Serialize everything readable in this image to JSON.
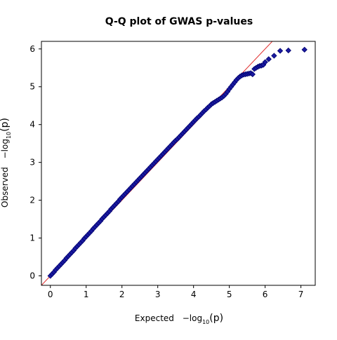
{
  "chart_data": {
    "type": "scatter",
    "title": "Q-Q plot of GWAS p-values",
    "xlabel": {
      "prefix": "Expected",
      "text": "−log",
      "sub": "10",
      "arg": "(p)"
    },
    "ylabel": {
      "prefix": "Observed",
      "text": "−log",
      "sub": "10",
      "arg": "(p)"
    },
    "xlim": [
      -0.25,
      7.4
    ],
    "ylim": [
      -0.25,
      6.2
    ],
    "xticks": [
      0,
      1,
      2,
      3,
      4,
      5,
      6,
      7
    ],
    "yticks": [
      0,
      1,
      2,
      3,
      4,
      5,
      6
    ],
    "xtick_labels": [
      "0",
      "1",
      "2",
      "3",
      "4",
      "5",
      "6",
      "7"
    ],
    "ytick_labels": [
      "0",
      "1",
      "2",
      "3",
      "4",
      "5",
      "6"
    ],
    "grid": false,
    "reference_line": {
      "slope": 1,
      "intercept": 0,
      "color": "#e03030"
    },
    "marker": {
      "shape": "diamond",
      "fill": "#1a1aa0",
      "stroke": "#00006e"
    },
    "series": [
      {
        "points": [
          [
            0.0,
            0.0
          ],
          [
            0.05,
            0.05
          ],
          [
            0.1,
            0.1
          ],
          [
            0.15,
            0.16
          ],
          [
            0.2,
            0.21
          ],
          [
            0.25,
            0.26
          ],
          [
            0.3,
            0.31
          ],
          [
            0.35,
            0.36
          ],
          [
            0.4,
            0.41
          ],
          [
            0.45,
            0.47
          ],
          [
            0.5,
            0.52
          ],
          [
            0.55,
            0.57
          ],
          [
            0.6,
            0.62
          ],
          [
            0.65,
            0.67
          ],
          [
            0.7,
            0.73
          ],
          [
            0.75,
            0.78
          ],
          [
            0.8,
            0.83
          ],
          [
            0.85,
            0.88
          ],
          [
            0.9,
            0.93
          ],
          [
            0.95,
            0.99
          ],
          [
            1.0,
            1.04
          ],
          [
            1.05,
            1.09
          ],
          [
            1.1,
            1.14
          ],
          [
            1.15,
            1.19
          ],
          [
            1.2,
            1.25
          ],
          [
            1.25,
            1.3
          ],
          [
            1.3,
            1.35
          ],
          [
            1.35,
            1.4
          ],
          [
            1.4,
            1.45
          ],
          [
            1.45,
            1.51
          ],
          [
            1.5,
            1.56
          ],
          [
            1.55,
            1.61
          ],
          [
            1.6,
            1.66
          ],
          [
            1.65,
            1.71
          ],
          [
            1.7,
            1.77
          ],
          [
            1.75,
            1.82
          ],
          [
            1.8,
            1.87
          ],
          [
            1.85,
            1.92
          ],
          [
            1.9,
            1.97
          ],
          [
            1.95,
            2.03
          ],
          [
            2.0,
            2.08
          ],
          [
            2.05,
            2.13
          ],
          [
            2.1,
            2.18
          ],
          [
            2.15,
            2.23
          ],
          [
            2.2,
            2.28
          ],
          [
            2.25,
            2.33
          ],
          [
            2.3,
            2.38
          ],
          [
            2.35,
            2.43
          ],
          [
            2.4,
            2.48
          ],
          [
            2.45,
            2.53
          ],
          [
            2.5,
            2.58
          ],
          [
            2.55,
            2.63
          ],
          [
            2.6,
            2.68
          ],
          [
            2.65,
            2.73
          ],
          [
            2.7,
            2.78
          ],
          [
            2.75,
            2.83
          ],
          [
            2.8,
            2.88
          ],
          [
            2.85,
            2.93
          ],
          [
            2.9,
            2.98
          ],
          [
            2.95,
            3.03
          ],
          [
            3.0,
            3.08
          ],
          [
            3.05,
            3.13
          ],
          [
            3.1,
            3.18
          ],
          [
            3.15,
            3.23
          ],
          [
            3.2,
            3.28
          ],
          [
            3.25,
            3.33
          ],
          [
            3.3,
            3.38
          ],
          [
            3.35,
            3.43
          ],
          [
            3.4,
            3.48
          ],
          [
            3.45,
            3.53
          ],
          [
            3.5,
            3.58
          ],
          [
            3.55,
            3.62
          ],
          [
            3.6,
            3.67
          ],
          [
            3.65,
            3.72
          ],
          [
            3.7,
            3.77
          ],
          [
            3.75,
            3.82
          ],
          [
            3.8,
            3.87
          ],
          [
            3.85,
            3.92
          ],
          [
            3.9,
            3.97
          ],
          [
            3.95,
            4.02
          ],
          [
            4.0,
            4.07
          ],
          [
            4.05,
            4.12
          ],
          [
            4.1,
            4.17
          ],
          [
            4.15,
            4.21
          ],
          [
            4.2,
            4.26
          ],
          [
            4.25,
            4.31
          ],
          [
            4.3,
            4.36
          ],
          [
            4.35,
            4.4
          ],
          [
            4.4,
            4.45
          ],
          [
            4.45,
            4.49
          ],
          [
            4.5,
            4.54
          ],
          [
            4.55,
            4.57
          ],
          [
            4.6,
            4.6
          ],
          [
            4.65,
            4.63
          ],
          [
            4.7,
            4.66
          ],
          [
            4.75,
            4.69
          ],
          [
            4.8,
            4.72
          ],
          [
            4.85,
            4.76
          ],
          [
            4.9,
            4.81
          ],
          [
            4.95,
            4.87
          ],
          [
            5.0,
            4.94
          ],
          [
            5.05,
            5.0
          ],
          [
            5.1,
            5.06
          ],
          [
            5.15,
            5.12
          ],
          [
            5.2,
            5.18
          ],
          [
            5.25,
            5.23
          ],
          [
            5.3,
            5.27
          ],
          [
            5.35,
            5.3
          ],
          [
            5.4,
            5.32
          ],
          [
            5.45,
            5.33
          ],
          [
            5.5,
            5.34
          ],
          [
            5.55,
            5.35
          ],
          [
            5.6,
            5.36
          ],
          [
            5.65,
            5.33
          ],
          [
            5.7,
            5.47
          ],
          [
            5.75,
            5.5
          ],
          [
            5.8,
            5.53
          ],
          [
            5.85,
            5.55
          ],
          [
            5.9,
            5.56
          ],
          [
            5.95,
            5.58
          ],
          [
            6.0,
            5.65
          ],
          [
            6.1,
            5.73
          ],
          [
            6.25,
            5.82
          ],
          [
            6.42,
            5.95
          ],
          [
            6.65,
            5.96
          ],
          [
            7.1,
            5.98
          ]
        ]
      }
    ]
  }
}
